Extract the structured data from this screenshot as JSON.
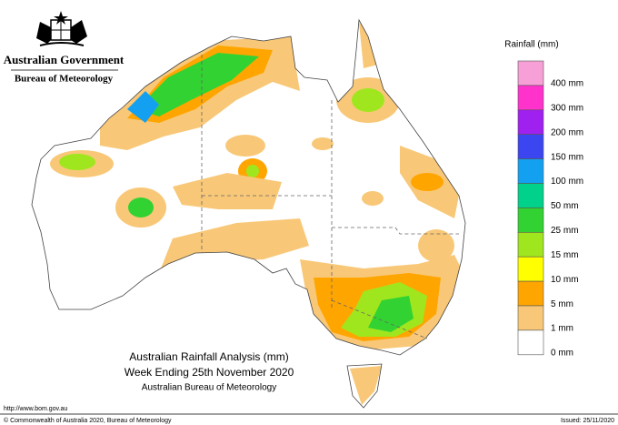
{
  "header": {
    "government": "Australian Government",
    "agency": "Bureau of Meteorology"
  },
  "legend": {
    "title": "Rainfall (mm)",
    "boxes": [
      "#f7a0d8",
      "#ff33cc",
      "#a020f0",
      "#3c46f0",
      "#14a0f0",
      "#00d28c",
      "#32d232",
      "#a0e61e",
      "#ffff00",
      "#ffa500",
      "#f8c878",
      "#ffffff"
    ],
    "labels": [
      "400 mm",
      "300 mm",
      "200 mm",
      "150 mm",
      "100 mm",
      "50 mm",
      "25 mm",
      "15 mm",
      "10 mm",
      "5 mm",
      "1 mm",
      "0 mm"
    ]
  },
  "caption": {
    "line1": "Australian Rainfall Analysis (mm)",
    "line2": "Week Ending 25th November 2020",
    "line3": "Australian Bureau of Meteorology"
  },
  "footer": {
    "url": "http://www.bom.gov.au",
    "copyright": "© Commonwealth of Australia 2020, Bureau of Meteorology",
    "issued": "Issued: 25/11/2020"
  }
}
